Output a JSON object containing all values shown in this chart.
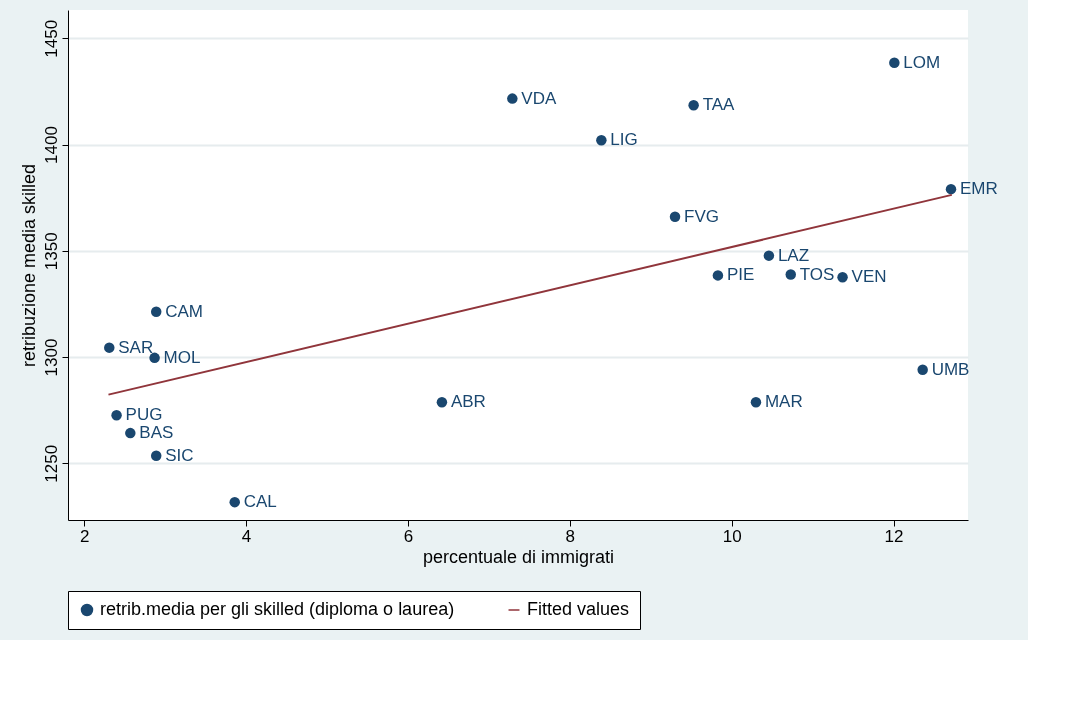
{
  "chart_data": {
    "type": "scatter",
    "xlabel": "percentuale di immigrati",
    "ylabel": "retribuzione media skilled",
    "xlim": [
      1.8,
      12.92
    ],
    "ylim": [
      1223.3,
      1463.3
    ],
    "xticks": [
      2,
      4,
      6,
      8,
      10,
      12
    ],
    "yticks": [
      1250,
      1300,
      1350,
      1400,
      1450
    ],
    "grid": "y",
    "legend": "bottom",
    "marker": "circle",
    "series": [
      {
        "name": "retrib.media per gli skilled (diploma o laurea)",
        "color": "#1a476f",
        "x": [
          7.29,
          9.53,
          8.39,
          12.01,
          12.71,
          9.3,
          10.46,
          9.83,
          10.73,
          11.37,
          2.89,
          2.31,
          2.87,
          12.36,
          6.42,
          10.3,
          2.4,
          2.57,
          2.89,
          3.86
        ],
        "values": [
          1421.6,
          1418.5,
          1402,
          1438.5,
          1379,
          1366,
          1347.7,
          1338.4,
          1338.8,
          1337.5,
          1321.3,
          1304.4,
          1299.6,
          1294,
          1278.7,
          1278.7,
          1272.6,
          1264.2,
          1253.5,
          1231.7
        ],
        "value_labels": [
          "VDA",
          "TAA",
          "LIG",
          "LOM",
          "EMR",
          "FVG",
          "LAZ",
          "PIE",
          "TOS",
          "VEN",
          "CAM",
          "SAR",
          "MOL",
          "UMB",
          "ABR",
          "MAR",
          "PUG",
          "BAS",
          "SIC",
          "CAL"
        ]
      },
      {
        "name": "Fitted values",
        "type": "line",
        "color": "#90353b",
        "line_style": "solid",
        "marker": "none",
        "x": [
          2.3,
          12.72
        ],
        "values": [
          1282.3,
          1376.3
        ]
      }
    ]
  }
}
